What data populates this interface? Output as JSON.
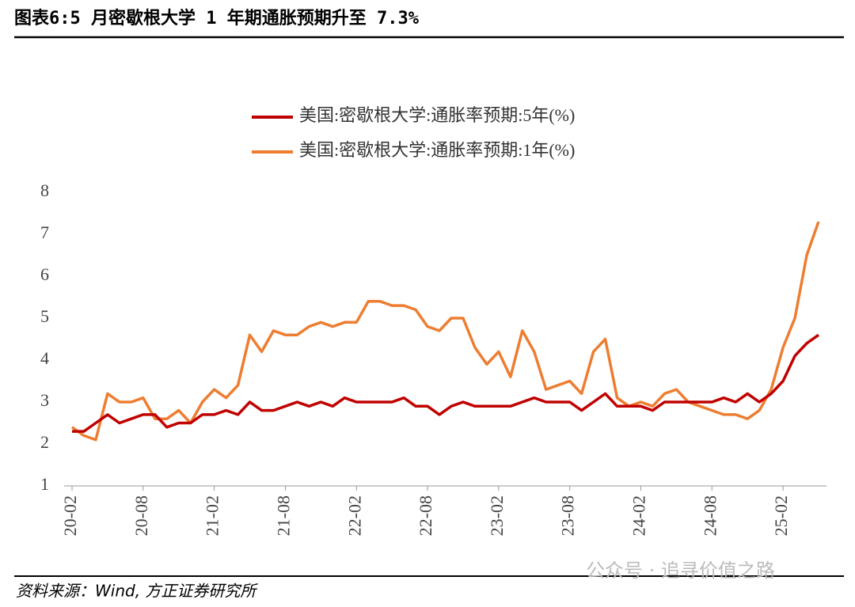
{
  "title": "图表6:5 月密歇根大学 1 年期通胀预期升至 7.3%",
  "source": "资料来源：Wind, 方正证券研究所",
  "watermark": "公众号 · 追寻价值之路",
  "chart_data": {
    "type": "line",
    "categories": [
      "20-02",
      null,
      null,
      null,
      null,
      null,
      "20-08",
      null,
      null,
      null,
      null,
      null,
      "21-02",
      null,
      null,
      null,
      null,
      null,
      "21-08",
      null,
      null,
      null,
      null,
      null,
      "22-02",
      null,
      null,
      null,
      null,
      null,
      "22-08",
      null,
      null,
      null,
      null,
      null,
      "23-02",
      null,
      null,
      null,
      null,
      null,
      "23-08",
      null,
      null,
      null,
      null,
      null,
      "24-02",
      null,
      null,
      null,
      null,
      null,
      "24-08",
      null,
      null,
      null,
      null,
      null,
      "25-02",
      null,
      null,
      null
    ],
    "series": [
      {
        "name": "美国:密歇根大学:通胀率预期:5年(%)",
        "color": "#c00000",
        "values": [
          2.3,
          2.3,
          2.5,
          2.7,
          2.5,
          2.6,
          2.7,
          2.7,
          2.4,
          2.5,
          2.5,
          2.7,
          2.7,
          2.8,
          2.7,
          3.0,
          2.8,
          2.8,
          2.9,
          3.0,
          2.9,
          3.0,
          2.9,
          3.1,
          3.0,
          3.0,
          3.0,
          3.0,
          3.1,
          2.9,
          2.9,
          2.7,
          2.9,
          3.0,
          2.9,
          2.9,
          2.9,
          2.9,
          3.0,
          3.1,
          3.0,
          3.0,
          3.0,
          2.8,
          3.0,
          3.2,
          2.9,
          2.9,
          2.9,
          2.8,
          3.0,
          3.0,
          3.0,
          3.0,
          3.0,
          3.1,
          3.0,
          3.2,
          3.0,
          3.2,
          3.5,
          4.1,
          4.4,
          4.6
        ]
      },
      {
        "name": "美国:密歇根大学:通胀率预期:1年(%)",
        "color": "#ed7d31",
        "values": [
          2.4,
          2.2,
          2.1,
          3.2,
          3.0,
          3.0,
          3.1,
          2.6,
          2.6,
          2.8,
          2.5,
          3.0,
          3.3,
          3.1,
          3.4,
          4.6,
          4.2,
          4.7,
          4.6,
          4.6,
          4.8,
          4.9,
          4.8,
          4.9,
          4.9,
          5.4,
          5.4,
          5.3,
          5.3,
          5.2,
          4.8,
          4.7,
          5.0,
          5.0,
          4.3,
          3.9,
          4.2,
          3.6,
          4.7,
          4.2,
          3.3,
          3.4,
          3.5,
          3.2,
          4.2,
          4.5,
          3.1,
          2.9,
          3.0,
          2.9,
          3.2,
          3.3,
          3.0,
          2.9,
          2.8,
          2.7,
          2.7,
          2.6,
          2.8,
          3.3,
          4.3,
          5.0,
          6.5,
          7.3
        ]
      }
    ],
    "ylim": [
      1,
      8
    ],
    "yticks": [
      1,
      2,
      3,
      4,
      5,
      6,
      7,
      8
    ],
    "grid": false,
    "legend": "top"
  }
}
